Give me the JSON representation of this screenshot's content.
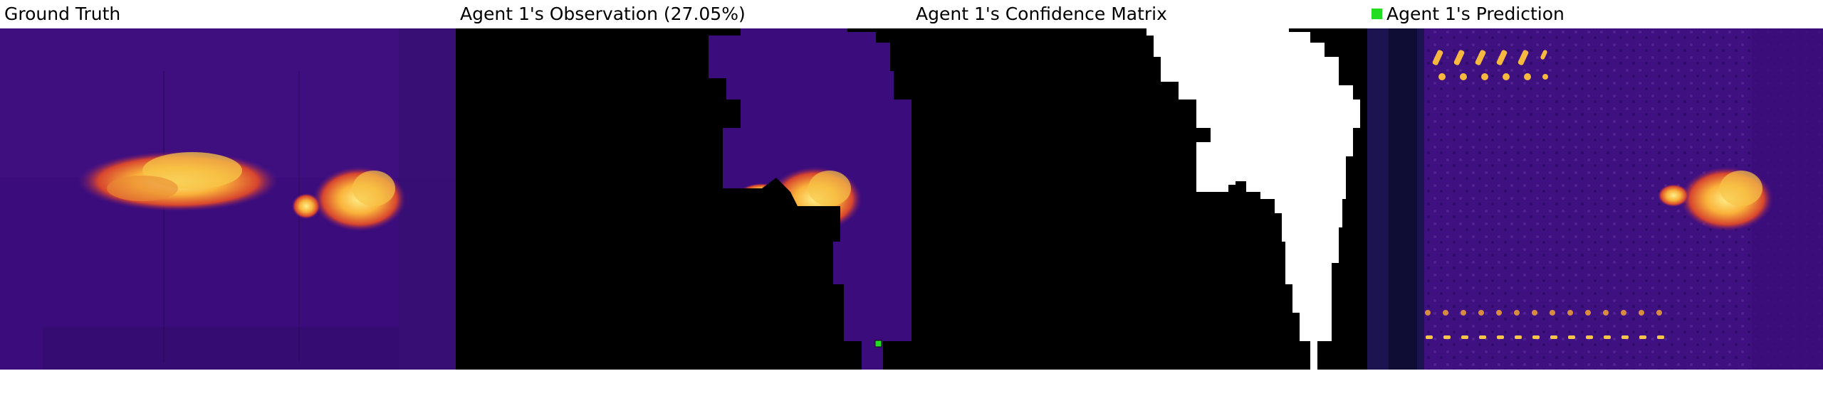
{
  "panels": [
    {
      "title": "Ground Truth"
    },
    {
      "title": "Agent 1's Observation (27.05%)"
    },
    {
      "title": "Agent 1's Confidence Matrix"
    },
    {
      "title": "Agent 1's Prediction"
    }
  ],
  "colors": {
    "legend_marker": "#22dd22",
    "background_purple": "#3a0a7a",
    "hot_yellow": "#ffd84a",
    "hot_orange": "#f07a2a",
    "mask_black": "#000000",
    "confidence_white": "#ffffff"
  }
}
